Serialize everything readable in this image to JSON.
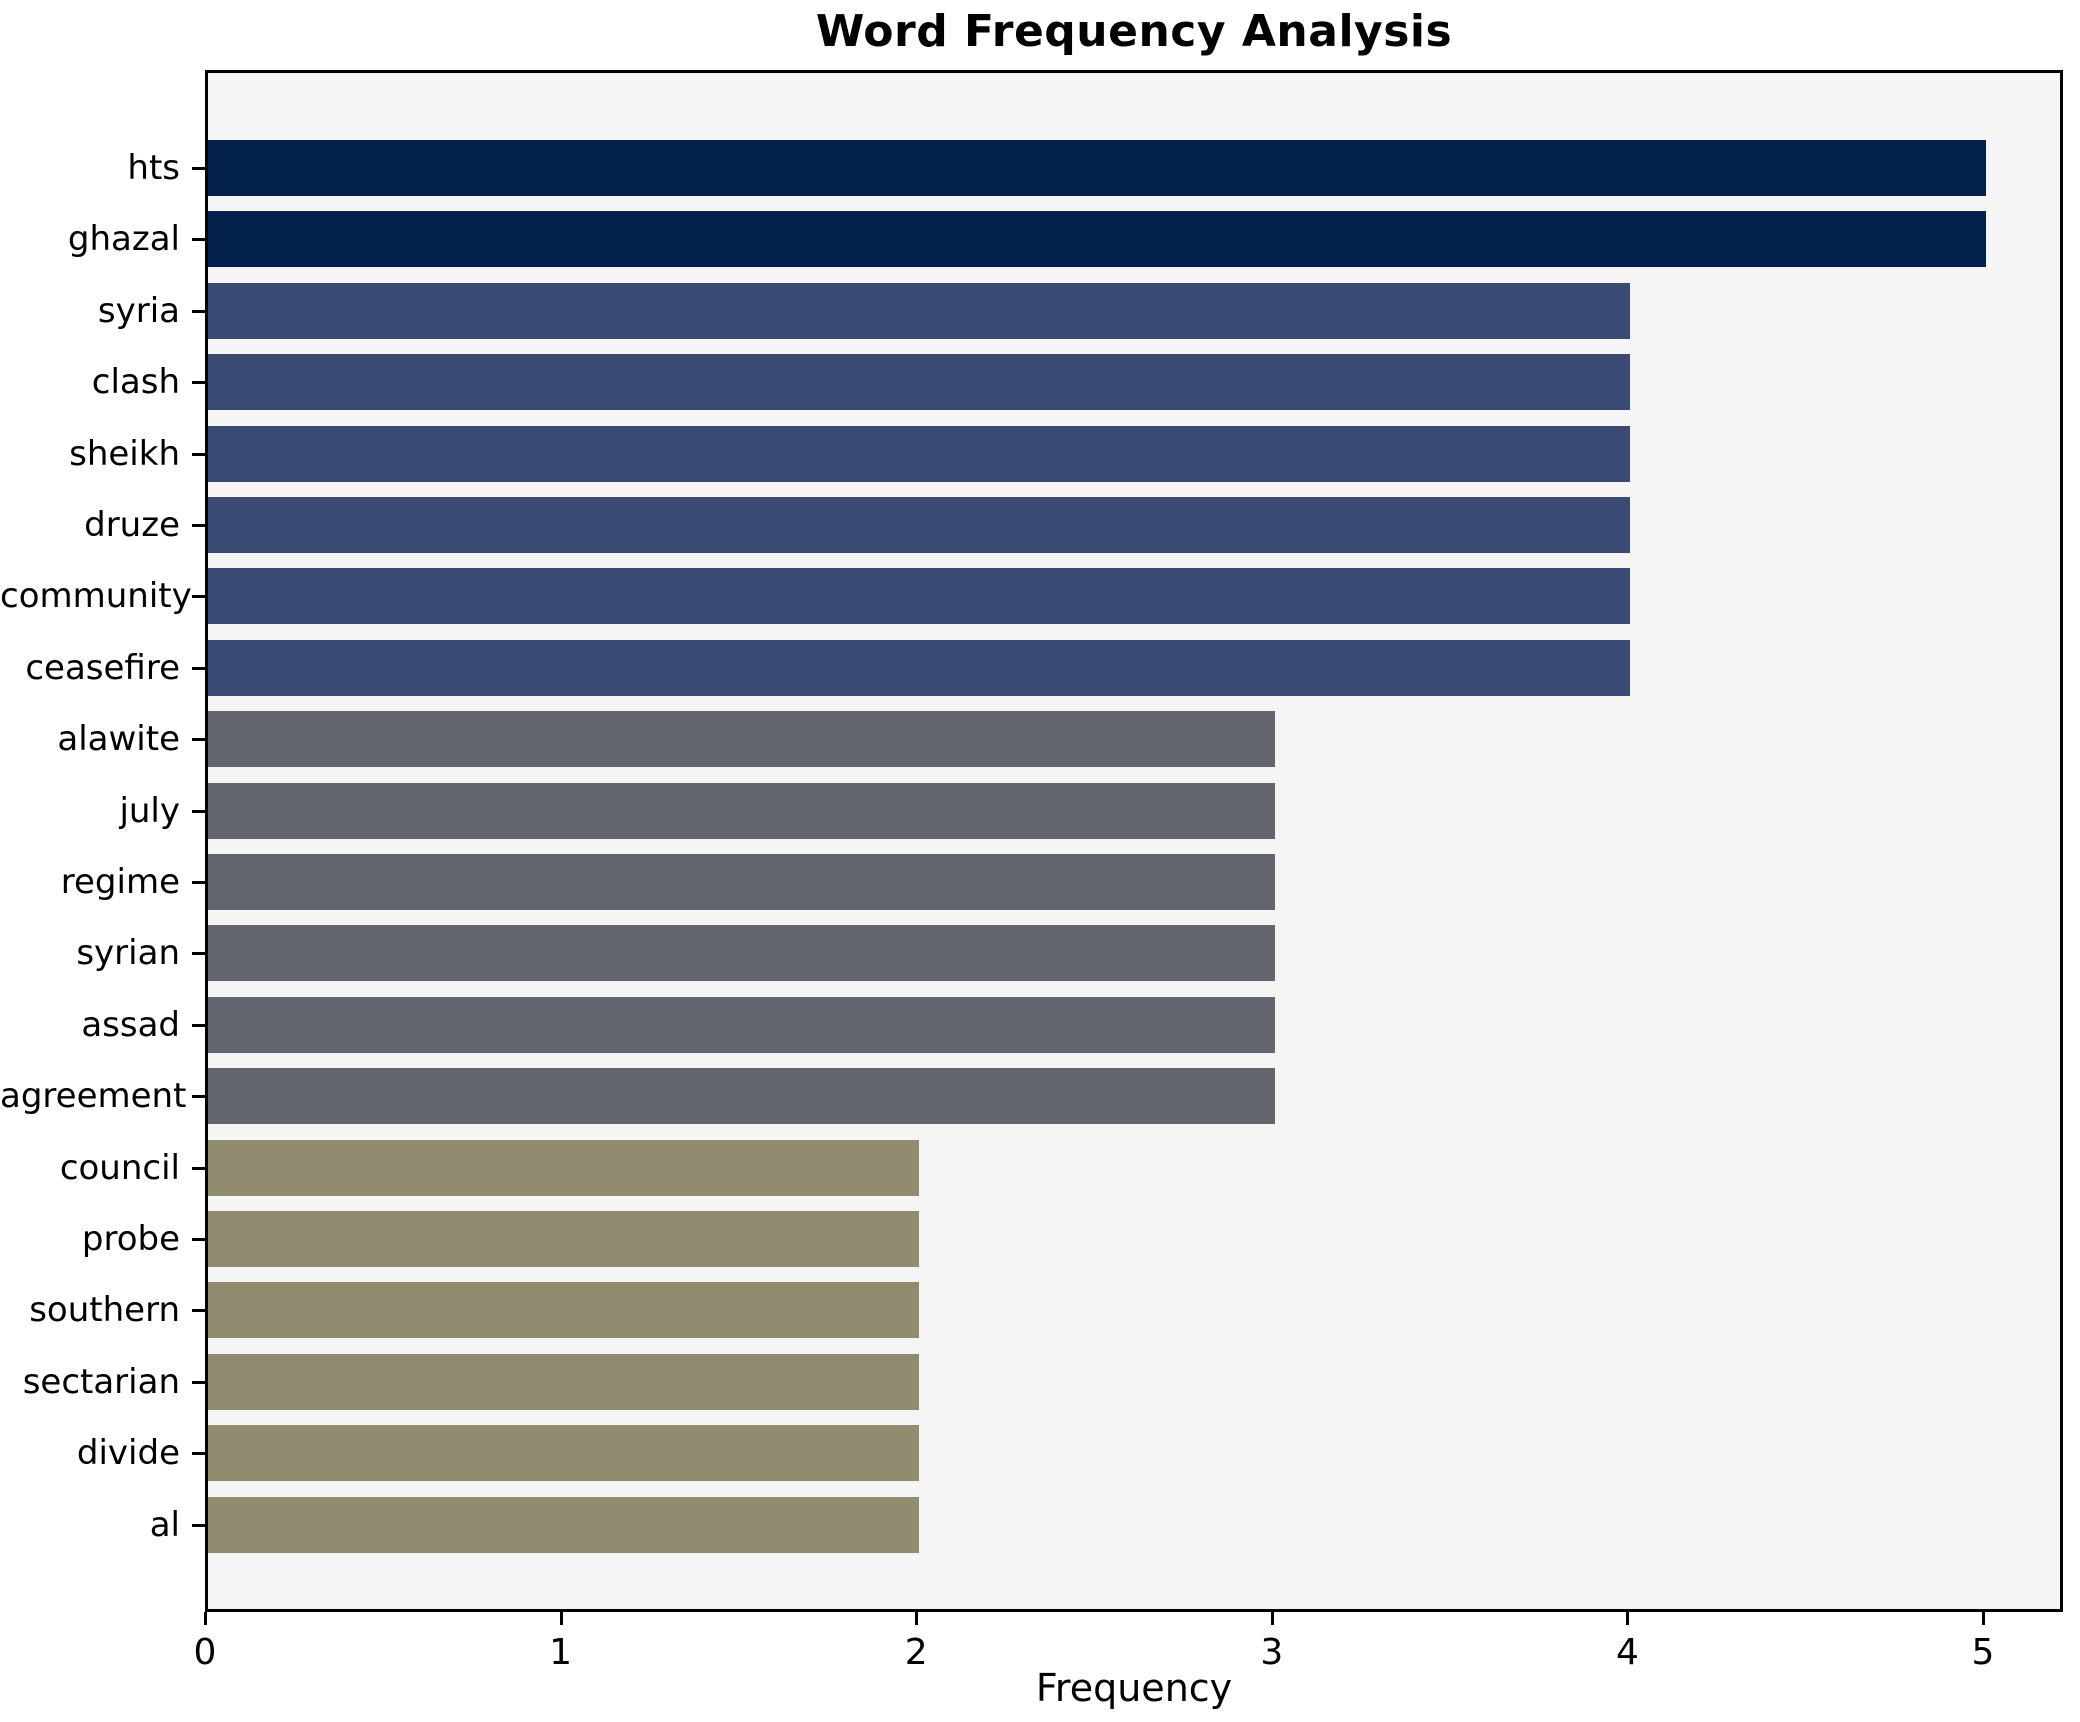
{
  "figure": {
    "background": "#ffffff",
    "plot_background": "#f5f5f6",
    "spine_color": "#000000",
    "text_color": "#000000"
  },
  "chart_data": {
    "type": "bar",
    "orientation": "horizontal",
    "title": "Word Frequency Analysis",
    "xlabel": "Frequency",
    "ylabel": "",
    "xlim": [
      0,
      5
    ],
    "x_ticks": [
      0,
      1,
      2,
      3,
      4,
      5
    ],
    "grid": false,
    "legend": false,
    "categories": [
      "hts",
      "ghazal",
      "syria",
      "clash",
      "sheikh",
      "druze",
      "community",
      "ceasefire",
      "alawite",
      "july",
      "regime",
      "syrian",
      "assad",
      "agreement",
      "council",
      "probe",
      "southern",
      "sectarian",
      "divide",
      "al"
    ],
    "values": [
      5,
      5,
      4,
      4,
      4,
      4,
      4,
      4,
      3,
      3,
      3,
      3,
      3,
      3,
      2,
      2,
      2,
      2,
      2,
      2
    ],
    "value_colors": {
      "5": "#03214a",
      "4": "#3a4a72",
      "3": "#63656e",
      "2": "#918b70"
    }
  }
}
